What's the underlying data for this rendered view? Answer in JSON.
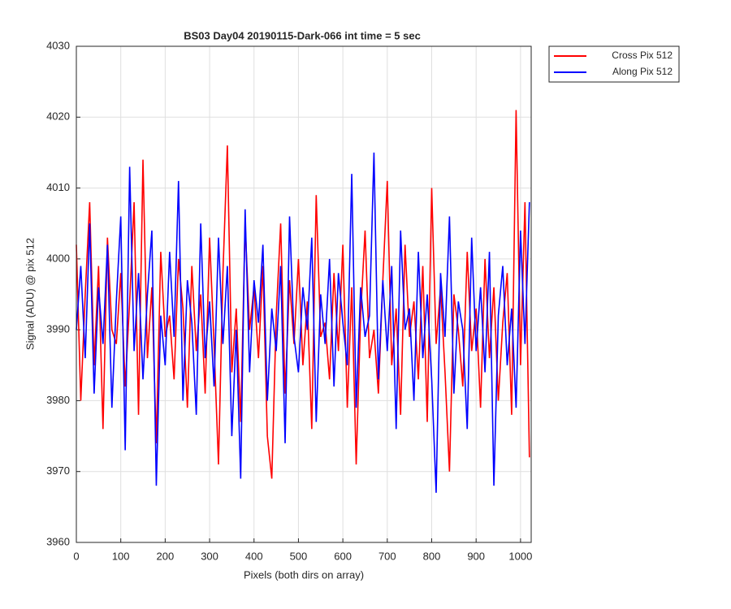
{
  "chart_data": {
    "type": "line",
    "title": "BS03 Day04 20190115-Dark-066 int time = 5 sec",
    "x_label": "Pixels (both dirs on array)",
    "y_label": "Signal (ADU) @ pix 512",
    "xlim": [
      0,
      1024
    ],
    "ylim": [
      3960,
      4030
    ],
    "xticks": [
      0,
      100,
      200,
      300,
      400,
      500,
      600,
      700,
      800,
      900,
      1000
    ],
    "yticks": [
      3960,
      3970,
      3980,
      3990,
      4000,
      4010,
      4020,
      4030
    ],
    "grid": true,
    "legend": "outside-right-top",
    "x": [
      0,
      10,
      20,
      30,
      40,
      50,
      60,
      70,
      80,
      90,
      100,
      110,
      120,
      130,
      140,
      150,
      160,
      170,
      180,
      190,
      200,
      210,
      220,
      230,
      240,
      250,
      260,
      270,
      280,
      290,
      300,
      310,
      320,
      330,
      340,
      350,
      360,
      370,
      380,
      390,
      400,
      410,
      420,
      430,
      440,
      450,
      460,
      470,
      480,
      490,
      500,
      510,
      520,
      530,
      540,
      550,
      560,
      570,
      580,
      590,
      600,
      610,
      620,
      630,
      640,
      650,
      660,
      670,
      680,
      690,
      700,
      710,
      720,
      730,
      740,
      750,
      760,
      770,
      780,
      790,
      800,
      810,
      820,
      830,
      840,
      850,
      860,
      870,
      880,
      890,
      900,
      910,
      920,
      930,
      940,
      950,
      960,
      970,
      980,
      990,
      1000,
      1010,
      1020
    ],
    "series": [
      {
        "name": "Cross Pix 512",
        "color": "#ff0000",
        "values": [
          4002,
          3980,
          3995,
          4008,
          3985,
          3999,
          3976,
          4003,
          3990,
          3988,
          3998,
          3982,
          3994,
          4008,
          3978,
          4014,
          3986,
          3996,
          3974,
          4001,
          3989,
          3992,
          3983,
          4000,
          3993,
          3979,
          3999,
          3987,
          3995,
          3981,
          4003,
          3988,
          3971,
          3998,
          4016,
          3984,
          3993,
          3977,
          4005,
          3990,
          3996,
          3986,
          3999,
          3975,
          3969,
          3992,
          4005,
          3981,
          3997,
          3988,
          4000,
          3985,
          3994,
          3976,
          4009,
          3989,
          3991,
          3983,
          3998,
          3987,
          4002,
          3979,
          3996,
          3971,
          3992,
          4004,
          3986,
          3990,
          3981,
          3997,
          4011,
          3985,
          3993,
          3978,
          4002,
          3989,
          3994,
          3983,
          3999,
          3977,
          4010,
          3988,
          3996,
          3984,
          3970,
          3995,
          3990,
          3982,
          4001,
          3987,
          3993,
          3979,
          4000,
          3986,
          3996,
          3980,
          3991,
          3998,
          3978,
          4021,
          3985,
          4008,
          3972
        ]
      },
      {
        "name": "Along Pix 512",
        "color": "#0000ff",
        "values": [
          3990,
          3999,
          3986,
          4005,
          3981,
          3996,
          3988,
          4002,
          3979,
          3994,
          4006,
          3973,
          4013,
          3987,
          3998,
          3983,
          3995,
          4004,
          3968,
          3992,
          3985,
          4001,
          3989,
          4011,
          3980,
          3997,
          3991,
          3978,
          4005,
          3986,
          3994,
          3982,
          4003,
          3988,
          3999,
          3975,
          3990,
          3969,
          4007,
          3984,
          3997,
          3991,
          4002,
          3980,
          3993,
          3987,
          3999,
          3974,
          4006,
          3989,
          3984,
          3996,
          3990,
          4003,
          3977,
          3995,
          3988,
          4000,
          3982,
          3998,
          3991,
          3985,
          4012,
          3979,
          3996,
          3989,
          3992,
          4015,
          3983,
          3997,
          3987,
          3999,
          3976,
          4004,
          3990,
          3993,
          3980,
          4001,
          3986,
          3995,
          3983,
          3967,
          3998,
          3989,
          4006,
          3981,
          3994,
          3990,
          3976,
          4003,
          3987,
          3996,
          3984,
          4001,
          3968,
          3992,
          3999,
          3985,
          3993,
          3979,
          4004,
          3988,
          4008
        ]
      }
    ]
  }
}
